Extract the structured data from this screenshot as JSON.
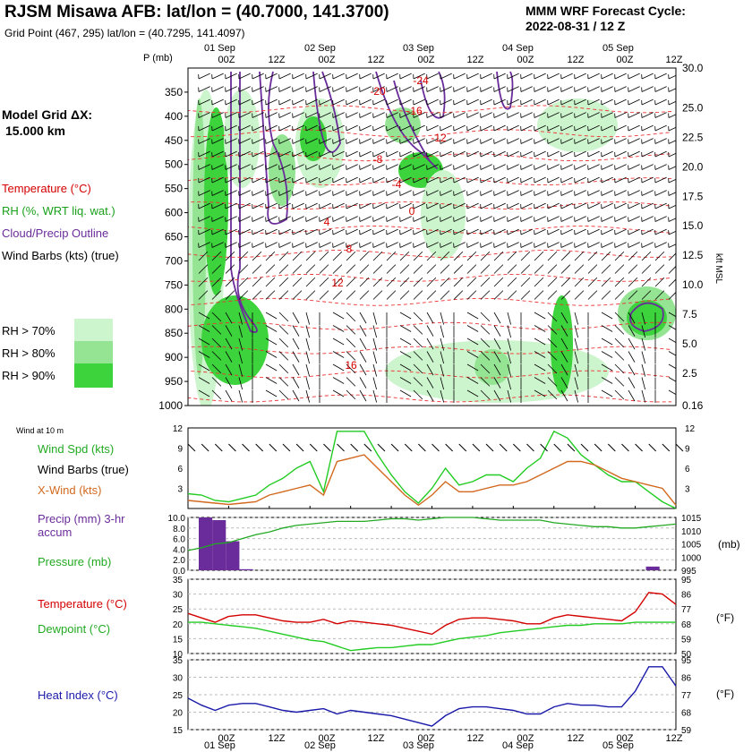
{
  "header": {
    "title": "RJSM Misawa AFB:  lat/lon = (40.7000, 141.3700)",
    "gridpoint": "Grid Point (467, 295) lat/lon = (40.7295, 141.4097)",
    "cycle_label": "MMM WRF Forecast Cycle:",
    "cycle_value": "2022-08-31 / 12  Z"
  },
  "left_panel": {
    "model_grid": "Model Grid ΔX:",
    "model_grid_value": "15.000 km",
    "legend": [
      {
        "label": "Temperature (°C)",
        "color": "#d40000"
      },
      {
        "label": "RH (%, WRT liq. wat.)",
        "color": "#1aa01a"
      },
      {
        "label": "Cloud/Precip Outline",
        "color": "#6a2c9a"
      },
      {
        "label": "Wind Barbs (kts) (true)",
        "color": "#000000"
      }
    ],
    "rh_key": [
      {
        "label": "RH > 70%",
        "color": "#cdf5cd"
      },
      {
        "label": "RH > 80%",
        "color": "#94e494"
      },
      {
        "label": "RH > 90%",
        "color": "#3cd33c"
      }
    ]
  },
  "time_axis": {
    "dates": [
      "01 Sep",
      "02 Sep",
      "03 Sep",
      "04 Sep",
      "05 Sep"
    ],
    "hours": [
      "00Z",
      "12Z",
      "00Z",
      "12Z",
      "00Z",
      "12Z",
      "00Z",
      "12Z",
      "00Z",
      "12Z"
    ]
  },
  "chart_data": [
    {
      "type": "heatmap",
      "id": "cross_section",
      "ylabel": "P (mb)",
      "y2label": "kft MSL",
      "y_ticks": [
        350,
        400,
        450,
        500,
        550,
        600,
        650,
        700,
        750,
        800,
        850,
        900,
        950,
        1000
      ],
      "y2_ticks": [
        "30.0",
        "25.0",
        "22.5",
        "20.0",
        "17.5",
        "15.0",
        "12.5",
        "10.0",
        "7.5",
        "5.0",
        "2.5",
        "0.16"
      ],
      "temp_labels": [
        "-20",
        "-24",
        "-16",
        "-12",
        "-8",
        "-4",
        "0",
        "4",
        "8",
        "12",
        "16"
      ]
    },
    {
      "type": "line",
      "id": "wind",
      "title": "Wind at 10 m",
      "ylim": [
        0,
        12
      ],
      "y_ticks": [
        3,
        6,
        9,
        12
      ],
      "series": [
        {
          "name": "Wind Spd (kts)",
          "color": "#22cc22",
          "values": [
            2.2,
            2.0,
            1.2,
            1.0,
            1.5,
            2.0,
            3.5,
            4.5,
            6.0,
            7.0,
            2.5,
            11.5,
            11.5,
            11.5,
            8.0,
            5.0,
            2.5,
            0.8,
            3.0,
            6.0,
            3.5,
            4.0,
            5.0,
            5.0,
            4.0,
            6.0,
            7.5,
            11.5,
            10.5,
            8.0,
            6.5,
            5.0,
            4.0,
            4.0,
            2.5,
            1.0,
            0.0
          ]
        },
        {
          "name": "X-Wind (kts)",
          "color": "#d2691e",
          "values": [
            1.2,
            1.0,
            0.8,
            0.6,
            0.8,
            1.0,
            2.0,
            2.5,
            3.0,
            3.5,
            2.0,
            7.0,
            7.5,
            8.0,
            6.0,
            4.0,
            2.0,
            0.5,
            2.0,
            4.0,
            2.5,
            2.5,
            3.0,
            3.5,
            3.5,
            4.0,
            5.0,
            6.0,
            7.0,
            7.0,
            6.5,
            5.5,
            4.5,
            4.0,
            3.5,
            3.0,
            0.5
          ]
        }
      ],
      "barbs_label": "Wind Barbs (true)"
    },
    {
      "type": "bar",
      "id": "precip",
      "ylabel": "Precip (mm) 3-hr accum",
      "y2label": "(mb)",
      "ylim": [
        0,
        10
      ],
      "y_ticks": [
        "0.0",
        "2.0",
        "4.0",
        "6.0",
        "8.0",
        "10.0"
      ],
      "y2_ticks": [
        "995",
        "1000",
        "1005",
        "1010",
        "1015"
      ],
      "bars": [
        {
          "t": 0,
          "value": 10.0
        },
        {
          "t": 1,
          "value": 9.5
        },
        {
          "t": 2,
          "value": 5.5
        },
        {
          "t": 3,
          "value": 0.2
        },
        {
          "t": 33,
          "value": 0.7
        }
      ],
      "pressure": {
        "name": "Pressure (mb)",
        "color": "#22aa22",
        "ylim": [
          995,
          1015
        ],
        "values": [
          1002.5,
          1003.5,
          1005,
          1005.5,
          1007,
          1008.5,
          1009.5,
          1011,
          1012,
          1012.5,
          1013,
          1013.5,
          1013.5,
          1013.5,
          1014,
          1014.5,
          1014.5,
          1014,
          1014.5,
          1015,
          1015,
          1015,
          1014.5,
          1014,
          1014,
          1014,
          1014,
          1013,
          1012.5,
          1012,
          1011.5,
          1011.5,
          1011,
          1011,
          1011.5,
          1012,
          1012.5
        ]
      }
    },
    {
      "type": "line",
      "id": "temperature",
      "ylim": [
        10,
        35
      ],
      "y_ticks": [
        10,
        15,
        20,
        25,
        30,
        35
      ],
      "y2label": "(°F)",
      "y2_ticks": [
        50,
        59,
        68,
        77,
        86,
        95
      ],
      "series": [
        {
          "name": "Temperature (°C)",
          "color": "#d40000",
          "values": [
            23.5,
            22.0,
            20.5,
            22.5,
            23.0,
            23.0,
            22.0,
            21.0,
            20.5,
            20.5,
            21.5,
            20.0,
            21.0,
            20.5,
            20.0,
            19.5,
            18.5,
            17.5,
            16.5,
            19.5,
            21.5,
            22.0,
            22.0,
            21.5,
            21.0,
            20.0,
            20.0,
            22.0,
            23.0,
            22.5,
            22.0,
            21.5,
            21.0,
            24.0,
            30.5,
            30.0,
            26.5
          ]
        },
        {
          "name": "Dewpoint (°C)",
          "color": "#22cc22",
          "values": [
            20.5,
            20.5,
            20.0,
            19.5,
            19.0,
            18.5,
            17.5,
            16.5,
            15.5,
            14.5,
            14.0,
            12.5,
            11.0,
            11.5,
            12.0,
            12.0,
            12.5,
            13.0,
            13.0,
            14.0,
            15.0,
            15.5,
            16.0,
            17.0,
            17.5,
            18.0,
            18.5,
            19.0,
            19.5,
            19.5,
            20.0,
            20.0,
            20.0,
            20.5,
            20.5,
            20.5,
            20.5
          ]
        }
      ]
    },
    {
      "type": "line",
      "id": "heat_index",
      "ylim": [
        15,
        35
      ],
      "y_ticks": [
        15,
        20,
        25,
        30,
        35
      ],
      "y2label": "(°F)",
      "y2_ticks": [
        59,
        68,
        77,
        86,
        95
      ],
      "series": [
        {
          "name": "Heat Index (°C)",
          "color": "#1a1aaa",
          "values": [
            24.0,
            22.0,
            20.5,
            22.0,
            22.5,
            22.5,
            21.5,
            20.5,
            20.0,
            20.5,
            21.0,
            19.5,
            20.5,
            20.0,
            19.5,
            19.0,
            18.0,
            17.0,
            16.0,
            19.0,
            21.0,
            21.5,
            21.5,
            21.0,
            20.5,
            19.5,
            19.5,
            21.5,
            22.5,
            22.0,
            22.0,
            21.5,
            21.5,
            26.0,
            33.0,
            33.0,
            27.5
          ]
        }
      ]
    }
  ]
}
